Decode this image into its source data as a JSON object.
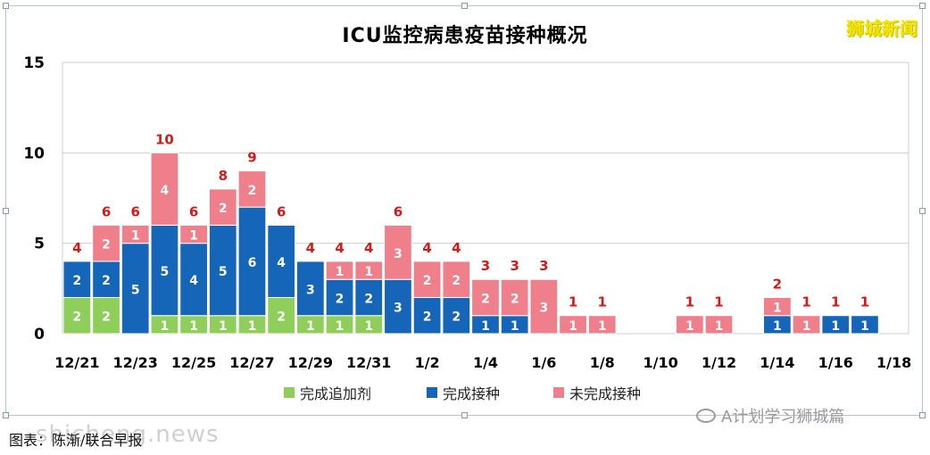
{
  "chart_data": {
    "type": "bar",
    "stacked": true,
    "title": "ICU监控病患疫苗接种概况",
    "categories": [
      "12/21",
      "12/22",
      "12/23",
      "12/24",
      "12/25",
      "12/26",
      "12/27",
      "12/28",
      "12/29",
      "12/30",
      "12/31",
      "1/1",
      "1/2",
      "1/3",
      "1/4",
      "1/5",
      "1/6",
      "1/7",
      "1/8",
      "1/9",
      "1/10",
      "1/11",
      "1/12",
      "1/13",
      "1/14",
      "1/15",
      "1/16",
      "1/17",
      "1/18"
    ],
    "tick_labels": [
      "12/21",
      "12/23",
      "12/25",
      "12/27",
      "12/29",
      "12/31",
      "1/2",
      "1/4",
      "1/6",
      "1/8",
      "1/10",
      "1/12",
      "1/14",
      "1/16",
      "1/18"
    ],
    "series": [
      {
        "name": "完成追加剂",
        "color": "#8fce5b",
        "values": [
          2,
          2,
          0,
          1,
          1,
          1,
          1,
          2,
          1,
          1,
          1,
          0,
          0,
          0,
          0,
          0,
          0,
          0,
          0,
          0,
          0,
          0,
          0,
          0,
          0,
          0,
          0,
          0,
          0
        ]
      },
      {
        "name": "完成接种",
        "color": "#1565b8",
        "values": [
          2,
          2,
          5,
          5,
          4,
          5,
          6,
          4,
          3,
          2,
          2,
          3,
          2,
          2,
          1,
          1,
          0,
          0,
          0,
          0,
          0,
          0,
          0,
          0,
          1,
          0,
          1,
          1,
          0
        ]
      },
      {
        "name": "未完成接种",
        "color": "#f07f8c",
        "values": [
          0,
          2,
          1,
          4,
          1,
          2,
          2,
          0,
          0,
          1,
          1,
          3,
          2,
          2,
          2,
          2,
          3,
          1,
          1,
          0,
          0,
          1,
          1,
          0,
          1,
          1,
          0,
          0,
          0
        ]
      }
    ],
    "totals": [
      4,
      6,
      6,
      10,
      6,
      8,
      9,
      6,
      4,
      4,
      4,
      6,
      4,
      4,
      3,
      3,
      3,
      1,
      1,
      0,
      0,
      1,
      1,
      0,
      2,
      1,
      1,
      1,
      0
    ],
    "ylim": [
      0,
      15
    ],
    "yticks": [
      0,
      5,
      10,
      15
    ],
    "grid": true,
    "legend_position": "bottom"
  },
  "watermarks": {
    "brand": "狮城新闻",
    "wechat": "A计划学习狮城篇",
    "site": "shicheng.news"
  },
  "footer_note": "图表：陈渐/联合早报",
  "colors": {
    "booster": "#8fce5b",
    "full": "#1565b8",
    "partial": "#f07f8c",
    "total_label": "#d11a1a",
    "grid": "#cfcfcf"
  }
}
